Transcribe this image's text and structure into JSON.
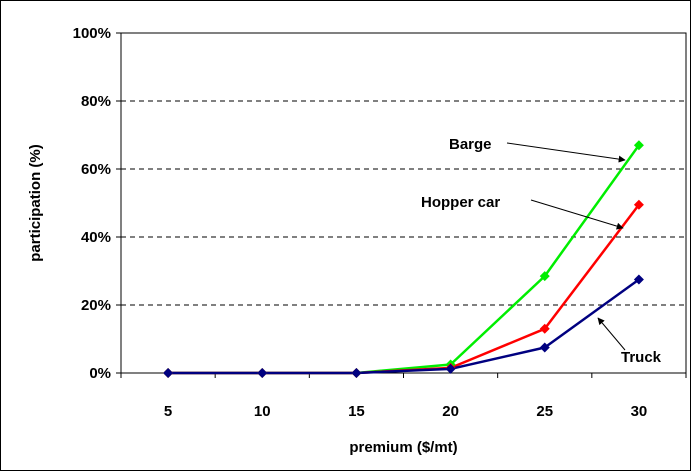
{
  "chart_data": {
    "type": "line",
    "x": [
      5,
      10,
      15,
      20,
      25,
      30
    ],
    "categories": [
      "5",
      "10",
      "15",
      "20",
      "25",
      "30"
    ],
    "series": [
      {
        "name": "Barge",
        "color": "#00ee00",
        "values": [
          0,
          0,
          0,
          2.5,
          28.5,
          67
        ]
      },
      {
        "name": "Hopper car",
        "color": "#ff0000",
        "values": [
          0,
          0,
          0,
          1.5,
          13,
          49.5
        ]
      },
      {
        "name": "Truck",
        "color": "#000080",
        "values": [
          0,
          0,
          0,
          1.2,
          7.5,
          27.5
        ]
      }
    ],
    "ylim": [
      0,
      100
    ],
    "yticks": [
      0,
      20,
      40,
      60,
      80,
      100
    ],
    "ytick_labels": [
      "0%",
      "20%",
      "40%",
      "60%",
      "80%",
      "100%"
    ],
    "xlabel": "premium ($/mt)",
    "ylabel": "participation (%)",
    "grid": "horizontal dashed",
    "annotations": [
      {
        "text": "Barge",
        "series": "Barge"
      },
      {
        "text": "Hopper car",
        "series": "Hopper car"
      },
      {
        "text": "Truck",
        "series": "Truck"
      }
    ]
  }
}
